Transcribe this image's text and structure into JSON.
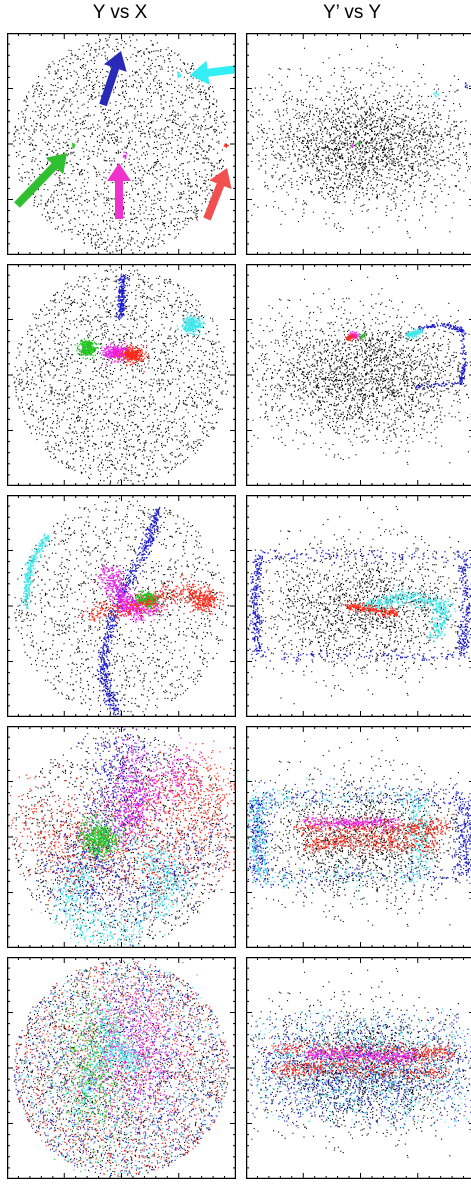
{
  "columns": {
    "left_title": "Y vs X",
    "right_title": "Y’ vs Y"
  },
  "rows": 5,
  "colors": {
    "background": "#000000",
    "blue": "#1c1ccf",
    "cyan": "#3fe6ea",
    "green": "#22c422",
    "magenta": "#ee22ee",
    "red": "#ff2a1a",
    "arrow_blue": "#2a2ab8",
    "arrow_cyan": "#33eef2",
    "arrow_green": "#2fbf2f",
    "arrow_magenta": "#ee33cc",
    "arrow_red": "#f05050",
    "frame": "#000000"
  },
  "arrows": [
    "blue-arrow",
    "cyan-arrow",
    "green-arrow",
    "magenta-arrow",
    "red-arrow"
  ]
}
